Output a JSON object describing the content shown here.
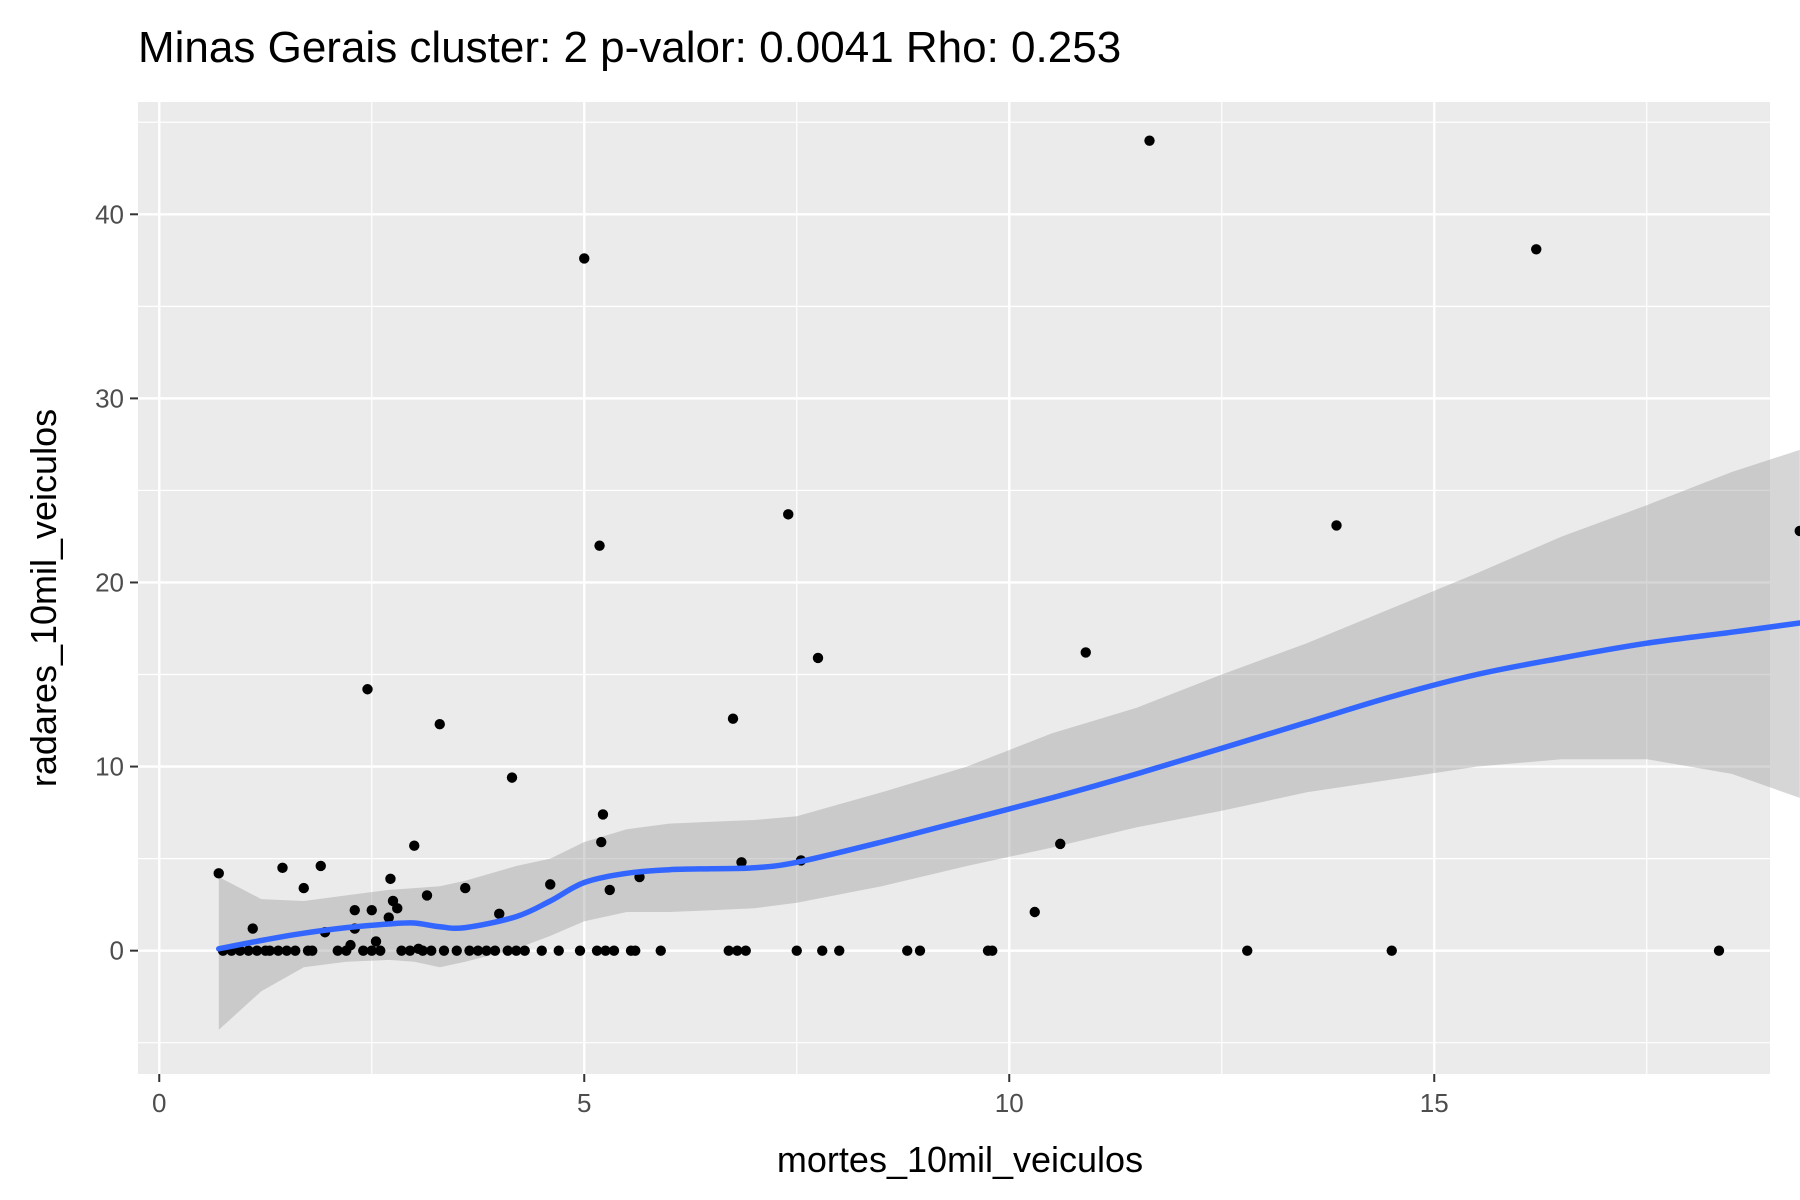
{
  "chart_data": {
    "type": "scatter",
    "title": "Minas Gerais cluster: 2 p-valor: 0.0041 Rho: 0.253",
    "xlabel": "mortes_10mil_veiculos",
    "ylabel": "radares_10mil_veiculos",
    "xlim": [
      -0.25,
      18.95
    ],
    "ylim": [
      -6.7,
      46.1
    ],
    "x_ticks": [
      0,
      5,
      10,
      15
    ],
    "x_tick_labels": [
      "0",
      "5",
      "10",
      "15"
    ],
    "y_ticks": [
      0,
      10,
      20,
      30,
      40
    ],
    "y_tick_labels": [
      "0",
      "10",
      "20",
      "30",
      "40"
    ],
    "grid": true,
    "points": [
      {
        "x": 0.7,
        "y": 4.2
      },
      {
        "x": 0.75,
        "y": 0
      },
      {
        "x": 0.85,
        "y": 0
      },
      {
        "x": 0.95,
        "y": 0
      },
      {
        "x": 1.05,
        "y": 0
      },
      {
        "x": 1.1,
        "y": 1.2
      },
      {
        "x": 1.15,
        "y": 0
      },
      {
        "x": 1.25,
        "y": 0
      },
      {
        "x": 1.3,
        "y": 0
      },
      {
        "x": 1.4,
        "y": 0
      },
      {
        "x": 1.45,
        "y": 4.5
      },
      {
        "x": 1.5,
        "y": 0
      },
      {
        "x": 1.6,
        "y": 0
      },
      {
        "x": 1.7,
        "y": 3.4
      },
      {
        "x": 1.75,
        "y": 0
      },
      {
        "x": 1.8,
        "y": 0
      },
      {
        "x": 1.9,
        "y": 4.6
      },
      {
        "x": 1.95,
        "y": 1.0
      },
      {
        "x": 2.1,
        "y": 0
      },
      {
        "x": 2.2,
        "y": 0
      },
      {
        "x": 2.25,
        "y": 0.3
      },
      {
        "x": 2.3,
        "y": 2.2
      },
      {
        "x": 2.3,
        "y": 1.2
      },
      {
        "x": 2.4,
        "y": 0
      },
      {
        "x": 2.45,
        "y": 14.2
      },
      {
        "x": 2.5,
        "y": 2.2
      },
      {
        "x": 2.5,
        "y": 0
      },
      {
        "x": 2.55,
        "y": 0.5
      },
      {
        "x": 2.6,
        "y": 0
      },
      {
        "x": 2.7,
        "y": 1.8
      },
      {
        "x": 2.72,
        "y": 3.9
      },
      {
        "x": 2.75,
        "y": 2.7
      },
      {
        "x": 2.8,
        "y": 2.3
      },
      {
        "x": 2.85,
        "y": 0
      },
      {
        "x": 2.95,
        "y": 0
      },
      {
        "x": 3.0,
        "y": 5.7
      },
      {
        "x": 3.05,
        "y": 0.1
      },
      {
        "x": 3.1,
        "y": 0
      },
      {
        "x": 3.15,
        "y": 3.0
      },
      {
        "x": 3.2,
        "y": 0
      },
      {
        "x": 3.3,
        "y": 12.3
      },
      {
        "x": 3.35,
        "y": 0
      },
      {
        "x": 3.5,
        "y": 0
      },
      {
        "x": 3.6,
        "y": 3.4
      },
      {
        "x": 3.65,
        "y": 0
      },
      {
        "x": 3.75,
        "y": 0
      },
      {
        "x": 3.85,
        "y": 0
      },
      {
        "x": 3.95,
        "y": 0
      },
      {
        "x": 4.0,
        "y": 2.0
      },
      {
        "x": 4.1,
        "y": 0
      },
      {
        "x": 4.15,
        "y": 9.4
      },
      {
        "x": 4.2,
        "y": 0
      },
      {
        "x": 4.3,
        "y": 0
      },
      {
        "x": 4.5,
        "y": 0
      },
      {
        "x": 4.6,
        "y": 3.6
      },
      {
        "x": 4.7,
        "y": 0
      },
      {
        "x": 4.95,
        "y": 0
      },
      {
        "x": 5.0,
        "y": 37.6
      },
      {
        "x": 5.15,
        "y": 0
      },
      {
        "x": 5.18,
        "y": 22.0
      },
      {
        "x": 5.2,
        "y": 5.9
      },
      {
        "x": 5.22,
        "y": 7.4
      },
      {
        "x": 5.25,
        "y": 0
      },
      {
        "x": 5.3,
        "y": 3.3
      },
      {
        "x": 5.35,
        "y": 0
      },
      {
        "x": 5.55,
        "y": 0
      },
      {
        "x": 5.6,
        "y": 0
      },
      {
        "x": 5.65,
        "y": 4.0
      },
      {
        "x": 5.9,
        "y": 0
      },
      {
        "x": 6.7,
        "y": 0
      },
      {
        "x": 6.75,
        "y": 12.6
      },
      {
        "x": 6.8,
        "y": 0
      },
      {
        "x": 6.85,
        "y": 4.8
      },
      {
        "x": 6.9,
        "y": 0
      },
      {
        "x": 7.4,
        "y": 23.7
      },
      {
        "x": 7.5,
        "y": 0
      },
      {
        "x": 7.55,
        "y": 4.9
      },
      {
        "x": 7.75,
        "y": 15.9
      },
      {
        "x": 7.8,
        "y": 0
      },
      {
        "x": 8.0,
        "y": 0
      },
      {
        "x": 8.8,
        "y": 0
      },
      {
        "x": 8.95,
        "y": 0
      },
      {
        "x": 9.75,
        "y": 0
      },
      {
        "x": 9.8,
        "y": 0
      },
      {
        "x": 10.3,
        "y": 2.1
      },
      {
        "x": 10.6,
        "y": 5.8
      },
      {
        "x": 10.9,
        "y": 16.2
      },
      {
        "x": 11.65,
        "y": 44.0
      },
      {
        "x": 12.8,
        "y": 0
      },
      {
        "x": 13.85,
        "y": 23.1
      },
      {
        "x": 14.5,
        "y": 0
      },
      {
        "x": 16.2,
        "y": 38.1
      },
      {
        "x": 18.35,
        "y": 0
      },
      {
        "x": 19.3,
        "y": 22.8
      }
    ],
    "smooth_line": {
      "x": [
        0.7,
        1.2,
        1.7,
        2.2,
        2.7,
        3.0,
        3.3,
        3.6,
        4.2,
        4.6,
        5.0,
        5.5,
        6.0,
        6.5,
        7.0,
        7.5,
        8.5,
        9.5,
        10.5,
        11.5,
        12.5,
        13.5,
        14.5,
        15.5,
        16.5,
        17.5,
        18.5,
        19.3
      ],
      "y": [
        0.1,
        0.55,
        0.95,
        1.25,
        1.45,
        1.5,
        1.3,
        1.25,
        1.85,
        2.7,
        3.7,
        4.2,
        4.4,
        4.45,
        4.5,
        4.8,
        5.9,
        7.1,
        8.3,
        9.6,
        11.0,
        12.4,
        13.8,
        15.0,
        15.9,
        16.7,
        17.3,
        17.8
      ]
    },
    "confidence_band": {
      "x": [
        0.7,
        1.2,
        1.7,
        2.2,
        2.7,
        3.0,
        3.3,
        3.6,
        4.2,
        4.6,
        5.0,
        5.5,
        6.0,
        6.5,
        7.0,
        7.5,
        8.5,
        9.5,
        10.5,
        11.5,
        12.5,
        13.5,
        14.5,
        15.5,
        16.5,
        17.5,
        18.5,
        19.3
      ],
      "lower": [
        -4.3,
        -2.2,
        -0.9,
        -0.6,
        -0.5,
        -0.6,
        -0.9,
        -0.6,
        0.1,
        0.8,
        1.6,
        2.1,
        2.1,
        2.2,
        2.3,
        2.6,
        3.5,
        4.6,
        5.6,
        6.7,
        7.6,
        8.6,
        9.3,
        10.0,
        10.4,
        10.4,
        9.6,
        8.3
      ],
      "upper": [
        4.0,
        2.8,
        2.7,
        3.0,
        3.3,
        3.4,
        3.5,
        3.8,
        4.6,
        5.0,
        5.9,
        6.6,
        6.9,
        7.0,
        7.1,
        7.3,
        8.6,
        10.0,
        11.8,
        13.2,
        15.0,
        16.7,
        18.6,
        20.5,
        22.5,
        24.2,
        26.0,
        27.2
      ]
    },
    "colors": {
      "panel": "#ebebeb",
      "grid": "#ffffff",
      "points": "#000000",
      "smooth_line": "#3366ff",
      "band": "#cccccc"
    }
  }
}
